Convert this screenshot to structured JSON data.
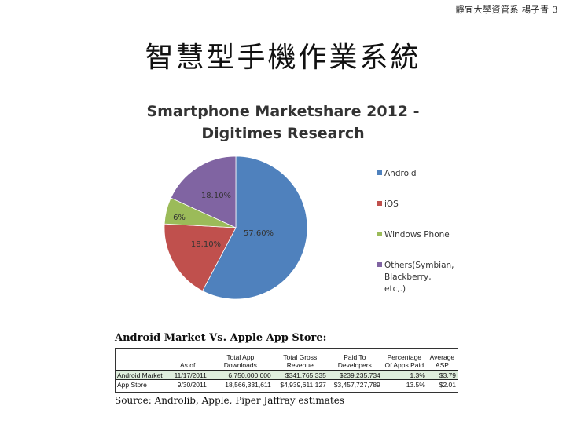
{
  "header_note": "靜宜大學資管系 楊子青 3",
  "slide_title": "智慧型手機作業系統",
  "chart_data": {
    "type": "pie",
    "title_line1": "Smartphone Marketshare 2012 -",
    "title_line2": "Digitimes Research",
    "legend_position": "right",
    "slices": [
      {
        "name": "Android",
        "value": 57.6,
        "label": "57.60%",
        "color": "#4f81bd"
      },
      {
        "name": "iOS",
        "value": 18.1,
        "label": "18.10%",
        "color": "#c0504d"
      },
      {
        "name": "Windows Phone",
        "value": 6,
        "label": "6%",
        "color": "#9bbb59"
      },
      {
        "name": "Others(Symbian, Blackberry, etc,.)",
        "value": 18.1,
        "label": "18.10%",
        "color": "#8064a2"
      }
    ]
  },
  "table": {
    "title": "Android Market Vs. Apple App Store:",
    "headers": [
      "",
      "As of",
      "Total App Downloads",
      "Total Gross Revenue",
      "Paid To Developers",
      "Percentage Of Apps Paid",
      "Average ASP"
    ],
    "rows": [
      [
        "Android Market",
        "11/17/2011",
        "6,750,000,000",
        "$341,765,335",
        "$239,235,734",
        "1.3%",
        "$3.79"
      ],
      [
        "App Store",
        "9/30/2011",
        "18,566,331,611",
        "$4,939,611,127",
        "$3,457,727,789",
        "13.5%",
        "$2.01"
      ]
    ],
    "source": "Source: Androlib, Apple, Piper Jaffray estimates"
  }
}
